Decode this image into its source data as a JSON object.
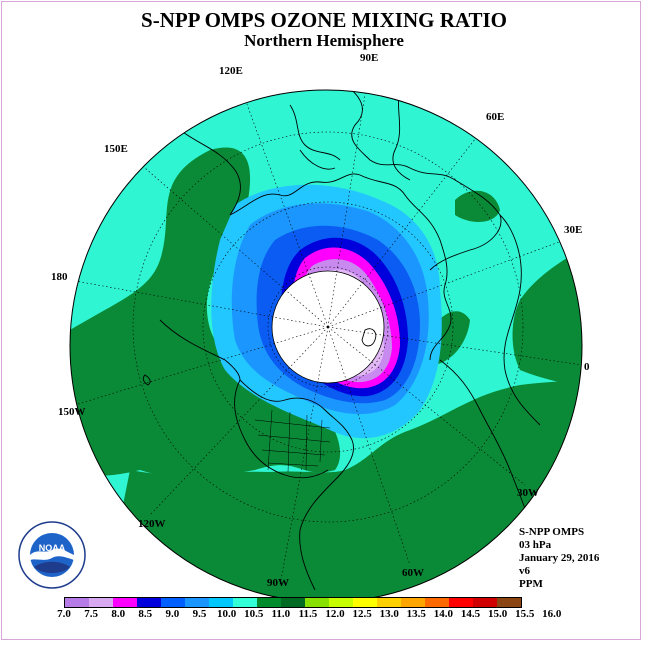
{
  "title": "S-NPP OMPS OZONE MIXING RATIO",
  "subtitle": "Northern Hemisphere",
  "longitude_labels": [
    "90E",
    "60E",
    "30E",
    "0",
    "30W",
    "60W",
    "90W",
    "120W",
    "150W",
    "180",
    "150E",
    "120E"
  ],
  "info": {
    "instrument": "S-NPP OMPS",
    "level": "03 hPa",
    "date": "January 29, 2016",
    "version": "v6",
    "units": "PPM"
  },
  "logo_text": "NOAA",
  "colorbar": {
    "colors": [
      "#b77be8",
      "#d8a8f0",
      "#ff00ff",
      "#0000dd",
      "#0060ff",
      "#1996ff",
      "#00c8ff",
      "#32ffd8",
      "#008c2d",
      "#006a23",
      "#88e000",
      "#c8ff00",
      "#ffff00",
      "#ffd000",
      "#ffa500",
      "#ff6a00",
      "#ff0000",
      "#d00000",
      "#8b4513"
    ],
    "tick_labels": [
      "7.0",
      "7.5",
      "8.0",
      "8.5",
      "9.0",
      "9.5",
      "10.0",
      "10.5",
      "11.0",
      "11.5",
      "12.0",
      "12.5",
      "13.0",
      "13.5",
      "14.0",
      "14.5",
      "15.0",
      "15.5",
      "16.0"
    ]
  },
  "colors": {
    "aqua": "#2ff5d3",
    "green": "#0a8a36",
    "dark_green": "#006b28",
    "light_blue": "#22c7ff",
    "mid_blue": "#1b96ff",
    "blue": "#0b5cf2",
    "dark_blue": "#0000dd",
    "magenta": "#ff00ff",
    "lilac": "#c98af0",
    "pale_lilac": "#e2b8f5",
    "polar_night": "#ffffff"
  }
}
